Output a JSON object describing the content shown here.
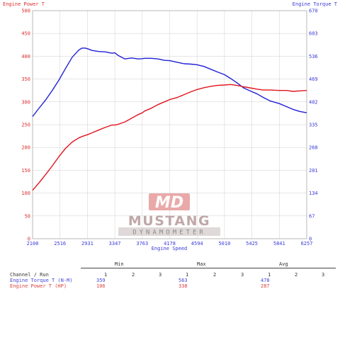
{
  "chart_data": {
    "type": "line",
    "title_left": "Engine Power T",
    "title_right": "Engine Torque T",
    "xlabel": "Engine Speed",
    "x_ticks": [
      "2100",
      "2516",
      "2931",
      "3347",
      "3763",
      "4178",
      "4594",
      "5010",
      "5425",
      "5841",
      "6257"
    ],
    "xlim": [
      2100,
      6257
    ],
    "y_left_ticks": [
      "0",
      "50",
      "100",
      "150",
      "200",
      "250",
      "300",
      "350",
      "400",
      "450",
      "500"
    ],
    "ylim_left": [
      0,
      500
    ],
    "y_right_ticks": [
      "0",
      "67",
      "134",
      "201",
      "268",
      "335",
      "402",
      "469",
      "536",
      "603",
      "670"
    ],
    "ylim_right": [
      0,
      670
    ],
    "grid": true,
    "series": [
      {
        "name": "Engine Torque T",
        "axis": "right",
        "color": "#1f1fd6",
        "x": [
          2100,
          2200,
          2300,
          2400,
          2500,
          2600,
          2700,
          2800,
          2850,
          2900,
          2950,
          3000,
          3100,
          3200,
          3300,
          3347,
          3400,
          3500,
          3600,
          3700,
          3763,
          3800,
          3900,
          4000,
          4100,
          4178,
          4300,
          4400,
          4500,
          4594,
          4700,
          4800,
          4900,
          5010,
          5100,
          5200,
          5300,
          5425,
          5500,
          5600,
          5700,
          5841,
          5950,
          6050,
          6150,
          6257
        ],
        "values": [
          359,
          384,
          408,
          436,
          466,
          500,
          533,
          554,
          560,
          560,
          557,
          553,
          550,
          549,
          545,
          546,
          538,
          528,
          531,
          528,
          529,
          530,
          530,
          528,
          524,
          523,
          518,
          514,
          513,
          511,
          506,
          498,
          490,
          482,
          471,
          458,
          443,
          432,
          426,
          415,
          405,
          397,
          388,
          380,
          374,
          370
        ]
      },
      {
        "name": "Engine Power T",
        "axis": "left",
        "color": "#e0141e",
        "x": [
          2100,
          2200,
          2300,
          2400,
          2500,
          2600,
          2700,
          2800,
          2850,
          2931,
          3000,
          3100,
          3200,
          3300,
          3347,
          3400,
          3500,
          3600,
          3700,
          3763,
          3800,
          3900,
          4000,
          4100,
          4178,
          4300,
          4400,
          4500,
          4594,
          4700,
          4800,
          4900,
          5010,
          5100,
          5200,
          5300,
          5425,
          5500,
          5600,
          5700,
          5841,
          5950,
          6050,
          6150,
          6257
        ],
        "values": [
          106,
          123,
          141,
          160,
          180,
          198,
          212,
          221,
          224,
          228,
          232,
          238,
          244,
          249,
          249,
          251,
          256,
          264,
          272,
          276,
          280,
          286,
          294,
          300,
          305,
          310,
          316,
          322,
          327,
          331,
          334,
          336,
          337,
          338,
          336,
          333,
          330,
          328,
          326,
          326,
          325,
          325,
          323,
          324,
          325
        ]
      }
    ],
    "stats": {
      "headers": [
        "Min",
        "Max",
        "Avg"
      ],
      "run_numbers": [
        "1",
        "2",
        "3"
      ],
      "channel_run_label": "Channel / Run",
      "rows": [
        {
          "name": "Engine Torque T (N-M)",
          "color": "#4444dd",
          "min": "359",
          "max": "563",
          "avg": "478"
        },
        {
          "name": "Engine Power T (HP)",
          "color": "#dd4444",
          "min": "106",
          "max": "338",
          "avg": "287"
        }
      ]
    }
  },
  "logo": {
    "monogram": "MD",
    "brand": "MUSTANG",
    "subtitle": "DYNAMOMETER"
  }
}
